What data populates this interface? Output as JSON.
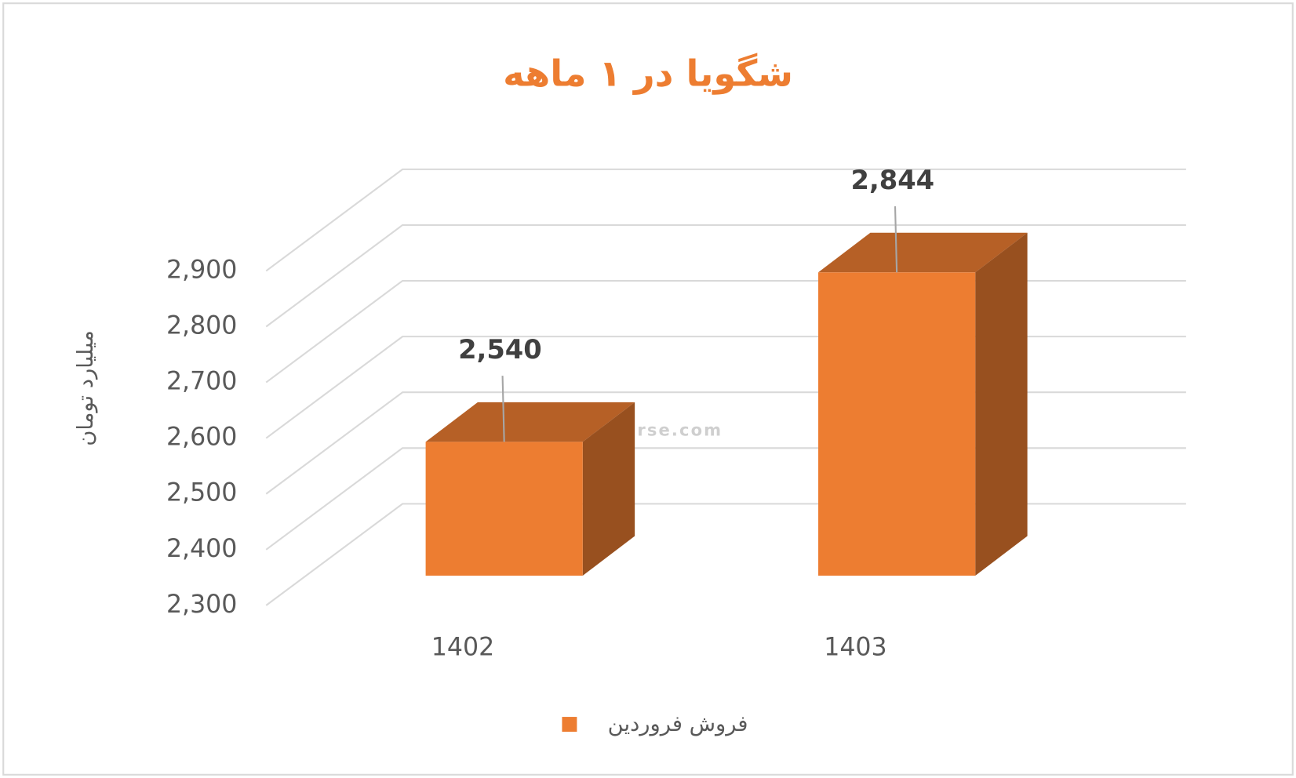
{
  "chart_data": {
    "type": "bar3d",
    "title": "شگویا در ۱ ماهه",
    "y_label": "میلیارد تومان",
    "watermark": "nabzebourse.com",
    "categories": [
      "1402",
      "1403"
    ],
    "series": [
      {
        "name": "فروش فروردین",
        "color": "#ED7D31",
        "values": [
          2540,
          2844
        ],
        "value_labels": [
          "2,540",
          "2,844"
        ]
      }
    ],
    "ylim": [
      2300,
      2900
    ],
    "yticks": [
      {
        "value": 2300,
        "label": "2,300"
      },
      {
        "value": 2400,
        "label": "2,400"
      },
      {
        "value": 2500,
        "label": "2,500"
      },
      {
        "value": 2600,
        "label": "2,600"
      },
      {
        "value": 2700,
        "label": "2,700"
      },
      {
        "value": 2800,
        "label": "2,800"
      },
      {
        "value": 2900,
        "label": "2,900"
      }
    ],
    "grid": true
  }
}
